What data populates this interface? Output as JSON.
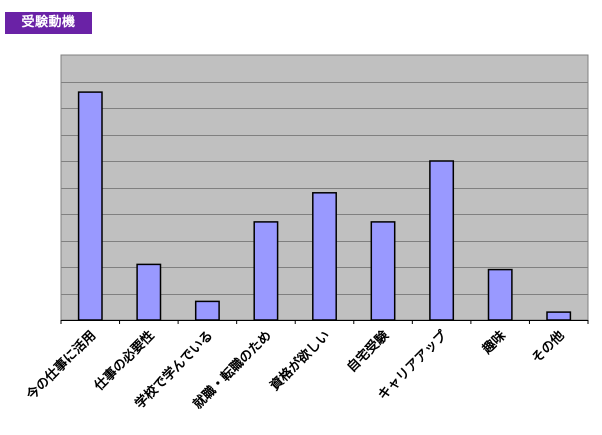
{
  "header": {
    "title": "受験動機"
  },
  "colors": {
    "title_bg": "#6a22a6",
    "plot_bg": "#c0c0c0",
    "bar_fill": "#9999ff",
    "bar_stroke": "#000000",
    "grid": "#808080"
  },
  "chart_data": {
    "type": "bar",
    "title": "受験動機",
    "categories": [
      "今の仕事に活用",
      "仕事の必要性",
      "学校で学んでいる",
      "就職・転職のため",
      "資格が欲しい",
      "自宅受験",
      "キャリアアップ",
      "趣味",
      "その他"
    ],
    "values": [
      8.6,
      2.1,
      0.7,
      3.7,
      4.8,
      3.7,
      6.0,
      1.9,
      0.3
    ],
    "ylim": [
      0,
      10
    ],
    "y_gridlines": 10,
    "grid": true,
    "y_tick_labels_shown": false,
    "legend": "none"
  }
}
